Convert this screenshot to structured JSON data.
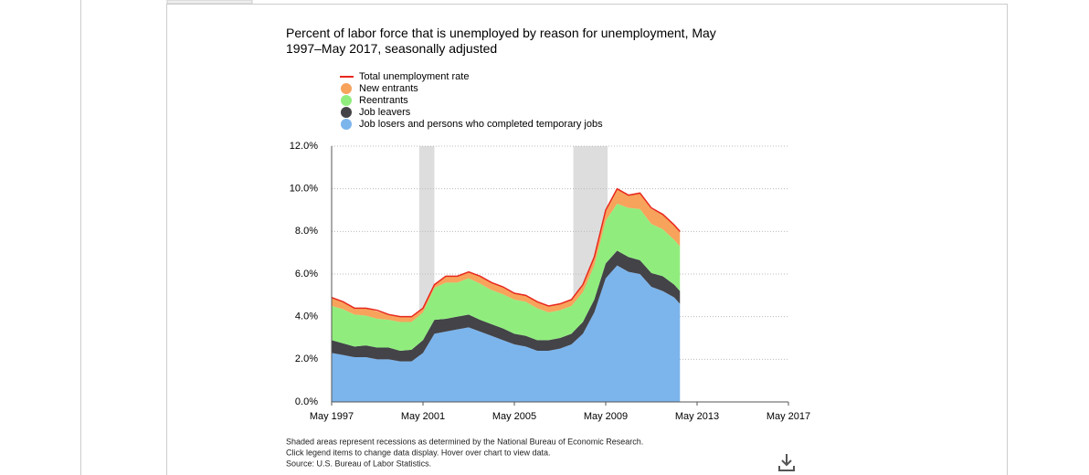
{
  "chart_data": {
    "type": "stacked-area",
    "title": "Percent of labor force that is unemployed by reason for unemployment, May 1997–May 2017, seasonally adjusted",
    "x": [
      "May 1997",
      "Nov 1997",
      "May 1998",
      "Nov 1998",
      "May 1999",
      "Nov 1999",
      "May 2000",
      "Nov 2000",
      "May 2001",
      "Nov 2001",
      "May 2002",
      "Nov 2002",
      "May 2003",
      "Nov 2003",
      "May 2004",
      "Nov 2004",
      "May 2005",
      "Nov 2005",
      "May 2006",
      "Nov 2006",
      "May 2007",
      "Nov 2007",
      "May 2008",
      "Nov 2008",
      "May 2009",
      "Nov 2009",
      "May 2010",
      "Nov 2010",
      "May 2011",
      "Nov 2011",
      "May 2012",
      "Aug 2012"
    ],
    "series": [
      {
        "name": "Total unemployment rate",
        "type": "line",
        "color": "#e8281d",
        "values": [
          4.9,
          4.7,
          4.4,
          4.4,
          4.3,
          4.1,
          4.0,
          4.0,
          4.4,
          5.5,
          5.9,
          5.9,
          6.1,
          5.9,
          5.6,
          5.4,
          5.1,
          5.0,
          4.7,
          4.5,
          4.6,
          4.8,
          5.5,
          6.8,
          9.0,
          10.0,
          9.7,
          9.8,
          9.1,
          8.8,
          8.3,
          8.0
        ]
      },
      {
        "name": "New entrants",
        "type": "area",
        "color": "#f7a35c",
        "values": [
          0.4,
          0.35,
          0.3,
          0.35,
          0.35,
          0.25,
          0.25,
          0.25,
          0.2,
          0.2,
          0.3,
          0.3,
          0.3,
          0.35,
          0.35,
          0.35,
          0.3,
          0.3,
          0.3,
          0.3,
          0.3,
          0.3,
          0.3,
          0.4,
          0.5,
          0.7,
          0.6,
          0.75,
          0.7,
          0.7,
          0.7,
          0.7
        ]
      },
      {
        "name": "Reentrants",
        "type": "area",
        "color": "#90ed7d",
        "values": [
          1.6,
          1.6,
          1.5,
          1.4,
          1.35,
          1.3,
          1.35,
          1.3,
          1.3,
          1.5,
          1.7,
          1.6,
          1.7,
          1.7,
          1.6,
          1.6,
          1.6,
          1.6,
          1.5,
          1.3,
          1.3,
          1.3,
          1.4,
          1.6,
          2.0,
          2.2,
          2.3,
          2.4,
          2.3,
          2.2,
          2.1,
          2.1
        ]
      },
      {
        "name": "Job leavers",
        "type": "area",
        "color": "#434348",
        "values": [
          0.6,
          0.55,
          0.5,
          0.55,
          0.55,
          0.55,
          0.5,
          0.55,
          0.6,
          0.65,
          0.6,
          0.6,
          0.6,
          0.55,
          0.55,
          0.55,
          0.5,
          0.5,
          0.5,
          0.5,
          0.5,
          0.5,
          0.55,
          0.6,
          0.7,
          0.7,
          0.7,
          0.65,
          0.65,
          0.7,
          0.6,
          0.6
        ]
      },
      {
        "name": "Job losers and persons who completed temporary jobs",
        "type": "area",
        "color": "#7cb5ec",
        "values": [
          2.3,
          2.2,
          2.1,
          2.1,
          2.0,
          2.0,
          1.9,
          1.9,
          2.3,
          3.2,
          3.3,
          3.4,
          3.5,
          3.3,
          3.1,
          2.9,
          2.7,
          2.6,
          2.4,
          2.4,
          2.5,
          2.7,
          3.2,
          4.2,
          5.8,
          6.4,
          6.1,
          6.0,
          5.4,
          5.2,
          4.9,
          4.6
        ]
      }
    ],
    "recessions": [
      [
        "Mar 2001",
        "Nov 2001"
      ],
      [
        "Dec 2007",
        "Jun 2009"
      ]
    ],
    "recession_color": "#dddddd",
    "xlim": [
      "May 1997",
      "May 2017"
    ],
    "xticks": [
      "May 1997",
      "May 2001",
      "May 2005",
      "May 2009",
      "May 2013",
      "May 2017"
    ],
    "ylim": [
      0,
      12
    ],
    "yticks": [
      {
        "value": 0,
        "label": "0.0%"
      },
      {
        "value": 2,
        "label": "2.0%"
      },
      {
        "value": 4,
        "label": "4.0%"
      },
      {
        "value": 6,
        "label": "6.0%"
      },
      {
        "value": 8,
        "label": "8.0%"
      },
      {
        "value": 10,
        "label": "10.0%"
      },
      {
        "value": 12,
        "label": "12.0%"
      }
    ],
    "grid": true,
    "notes": [
      "Shaded areas represent recessions as determined by the National Bureau of Economic Research.",
      "Click legend items to change data display. Hover over chart to view data.",
      "Source: U.S. Bureau of Labor Statistics."
    ]
  }
}
